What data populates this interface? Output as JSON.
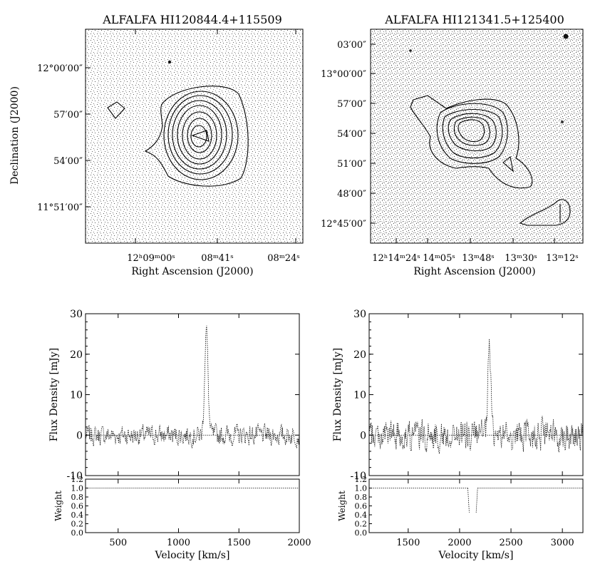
{
  "chart_data": [
    {
      "type": "contour",
      "title": "ALFALFA  HI120844.4+115509",
      "xlabel": "Right Ascension (J2000)",
      "ylabel": "Declination (J2000)",
      "x_ticks": [
        "12ʰ09ᵐ00ˢ",
        "08ᵐ41ˢ",
        "08ᵐ24ˢ"
      ],
      "y_ticks": [
        "12°00′00″",
        "57′00″",
        "54′00″",
        "11°51′00″"
      ],
      "contour_levels": 9
    },
    {
      "type": "contour",
      "title": "ALFALFA  HI121341.5+125400",
      "xlabel": "Right Ascension (J2000)",
      "ylabel": "",
      "x_ticks": [
        "12ʰ14ᵐ24ˢ",
        "14ᵐ05ˢ",
        "13ᵐ48ˢ",
        "13ᵐ30ˢ",
        "13ᵐ12ˢ"
      ],
      "y_ticks": [
        "03′00″",
        "13°00′00″",
        "57′00″",
        "54′00″",
        "51′00″",
        "48′00″",
        "12°45′00″"
      ],
      "contour_levels": 7
    },
    {
      "type": "line",
      "title": "",
      "xlabel": "Velocity [km/s]",
      "ylabel": "Flux Density [mJy]",
      "xlim": [
        230,
        2000
      ],
      "ylim": [
        -10,
        30
      ],
      "x_ticks": [
        500,
        1000,
        1500,
        2000
      ],
      "y_ticks": [
        -10,
        0,
        10,
        20,
        30
      ],
      "peak_velocity": 1230,
      "peak_flux": 26,
      "noise_mjy": 2.2,
      "weight_panel": {
        "ylabel": "Weight",
        "ylim": [
          0,
          1.2
        ],
        "y_ticks": [
          "0.0",
          "0.2",
          "0.4",
          "0.6",
          "0.8",
          "1.0",
          "1.2"
        ],
        "value": 1.0
      }
    },
    {
      "type": "line",
      "title": "",
      "xlabel": "Velocity [km/s]",
      "ylabel": "Flux Density [mJy]",
      "xlim": [
        1120,
        3200
      ],
      "ylim": [
        -10,
        30
      ],
      "x_ticks": [
        1500,
        2000,
        2500,
        3000
      ],
      "y_ticks": [
        -10,
        0,
        10,
        20,
        30
      ],
      "peak_velocity": 2290,
      "peak_flux": 21.5,
      "noise_mjy": 3.4,
      "weight_panel": {
        "ylabel": "Weight",
        "ylim": [
          0,
          1.2
        ],
        "y_ticks": [
          "0.0",
          "0.2",
          "0.4",
          "0.6",
          "0.8",
          "1.0",
          "1.2"
        ],
        "value": 1.0,
        "dip": {
          "from": 2080,
          "to": 2175,
          "min": 0.45
        }
      }
    }
  ]
}
